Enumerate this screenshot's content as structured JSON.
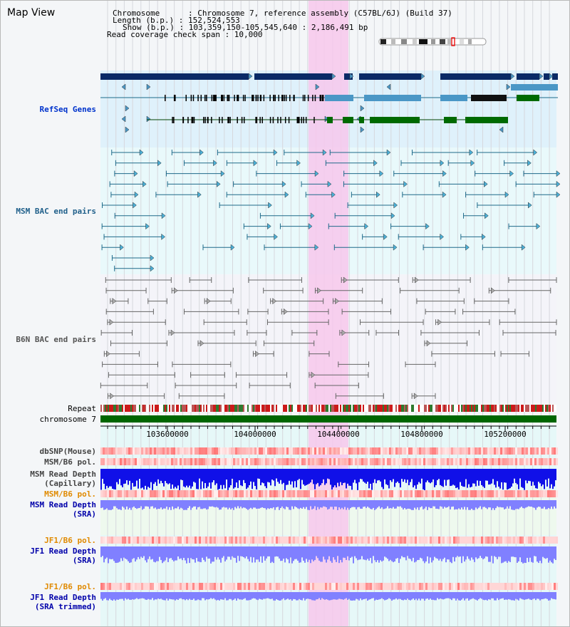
{
  "page": {
    "title": "Map View"
  },
  "info": {
    "chromosome": "Chromosome      : Chromosome 7, reference assembly (C57BL/6J) (Build 37)",
    "length": "Length (b.p.) : 152,524,553",
    "show": "Show (b.p.) : 103,359,150-105,545,640 : 2,186,491 bp",
    "coverage": "Read coverage check span : 10,000"
  },
  "tracks": {
    "refseq": "RefSeq Genes",
    "msm_bac": "MSM BAC end pairs",
    "b6n_bac": "B6N BAC end pairs",
    "repeat": "Repeat",
    "chromosome": "chromosome 7",
    "dbsnp": "dbSNP(Mouse)",
    "msm_b6_pol_1": "MSM/B6 pol.",
    "msm_read_depth_cap_1": "MSM Read Depth",
    "msm_read_depth_cap_2": "(Capillary)",
    "msm_b6_pol_2": "MSM/B6 pol.",
    "msm_read_depth_sra_1": "MSM Read Depth",
    "msm_read_depth_sra_2": "(SRA)",
    "jf1_b6_pol_1": "JF1/B6 pol.",
    "jf1_read_depth_1": "JF1 Read Depth",
    "jf1_read_depth_2": "(SRA)",
    "jf1_b6_pol_2": "JF1/B6 pol.",
    "jf1_trim_1": "JF1 Read Depth",
    "jf1_trim_2": "(SRA trimmed)"
  },
  "ruler": {
    "ticks": [
      "103600000",
      "104000000",
      "104400000",
      "104800000",
      "105200000"
    ]
  },
  "colors": {
    "refseq_label": "#0033cc",
    "msm_bac_label": "#1f5f8a",
    "b6n_label": "#555555",
    "orange_label": "#e08a00",
    "blue_label": "#0000aa",
    "highlight": "#f7c8ec",
    "chrom_bar": "#006600",
    "gene_dark": "#0a2a66",
    "gene_light": "#4a97c6",
    "gene_green": "#006a00",
    "depth_cap": "#1010e8",
    "depth_sra": "#8080ff"
  }
}
